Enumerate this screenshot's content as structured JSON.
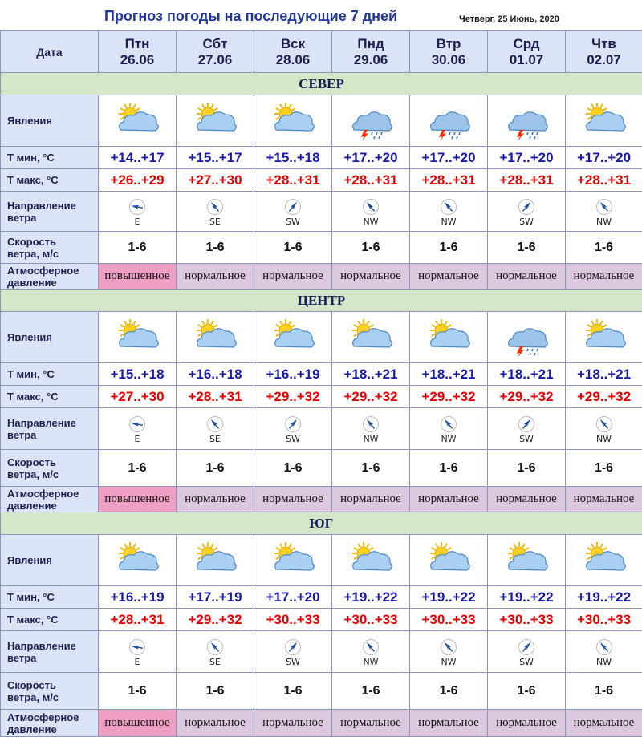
{
  "header": {
    "title": "Прогноз погоды на последующие 7 дней",
    "date": "Четверг, 25 Июнь, 2020"
  },
  "labels": {
    "date": "Дата",
    "phenomena": "Явления",
    "tmin": "Т мин, °С",
    "tmax": "Т макс, °С",
    "wind_dir_1": "Направление",
    "wind_dir_2": "ветра",
    "wind_speed_1": "Скорость",
    "wind_speed_2": "ветра, м/с",
    "pressure_1": "Атмосферное",
    "pressure_2": "давление"
  },
  "days": [
    {
      "name": "Птн",
      "date": "26.06"
    },
    {
      "name": "Сбт",
      "date": "27.06"
    },
    {
      "name": "Вск",
      "date": "28.06"
    },
    {
      "name": "Пнд",
      "date": "29.06"
    },
    {
      "name": "Втр",
      "date": "30.06"
    },
    {
      "name": "Срд",
      "date": "01.07"
    },
    {
      "name": "Чтв",
      "date": "02.07"
    }
  ],
  "colors": {
    "title": "#23379b",
    "tmin": "#1a1aa8",
    "tmax": "#e60000",
    "region_bg": "#d6e6c8",
    "label_bg": "#dbe4f6",
    "pressure_normal_bg": "#dcc8de",
    "pressure_high_bg": "#ef9fc4"
  },
  "regions": [
    {
      "name": "СЕВЕР",
      "icons": [
        "partly-cloudy-icon",
        "partly-cloudy-icon",
        "partly-cloudy-icon",
        "thunderstorm-icon",
        "thunderstorm-icon",
        "thunderstorm-icon",
        "partly-cloudy-icon"
      ],
      "tmin": [
        "+14..+17",
        "+15..+17",
        "+15..+18",
        "+17..+20",
        "+17..+20",
        "+17..+20",
        "+17..+20"
      ],
      "tmax": [
        "+26..+29",
        "+27..+30",
        "+28..+31",
        "+28..+31",
        "+28..+31",
        "+28..+31",
        "+28..+31"
      ],
      "wind_dir": [
        "E",
        "SE",
        "SW",
        "NW",
        "NW",
        "SW",
        "NW"
      ],
      "wind_speed": [
        "1-6",
        "1-6",
        "1-6",
        "1-6",
        "1-6",
        "1-6",
        "1-6"
      ],
      "pressure": [
        "повышенное",
        "нормальное",
        "нормальное",
        "нормальное",
        "нормальное",
        "нормальное",
        "нормальное"
      ]
    },
    {
      "name": "ЦЕНТР",
      "icons": [
        "partly-cloudy-icon",
        "partly-cloudy-icon",
        "partly-cloudy-icon",
        "partly-cloudy-icon",
        "partly-cloudy-icon",
        "thunderstorm-icon",
        "partly-cloudy-icon"
      ],
      "tmin": [
        "+15..+18",
        "+16..+18",
        "+16..+19",
        "+18..+21",
        "+18..+21",
        "+18..+21",
        "+18..+21"
      ],
      "tmax": [
        "+27..+30",
        "+28..+31",
        "+29..+32",
        "+29..+32",
        "+29..+32",
        "+29..+32",
        "+29..+32"
      ],
      "wind_dir": [
        "E",
        "SE",
        "SW",
        "NW",
        "NW",
        "SW",
        "NW"
      ],
      "wind_speed": [
        "1-6",
        "1-6",
        "1-6",
        "1-6",
        "1-6",
        "1-6",
        "1-6"
      ],
      "pressure": [
        "повышенное",
        "нормальное",
        "нормальное",
        "нормальное",
        "нормальное",
        "нормальное",
        "нормальное"
      ]
    },
    {
      "name": "ЮГ",
      "icons": [
        "partly-cloudy-icon",
        "partly-cloudy-icon",
        "partly-cloudy-icon",
        "partly-cloudy-icon",
        "partly-cloudy-icon",
        "partly-cloudy-icon",
        "partly-cloudy-icon"
      ],
      "tmin": [
        "+16..+19",
        "+17..+19",
        "+17..+20",
        "+19..+22",
        "+19..+22",
        "+19..+22",
        "+19..+22"
      ],
      "tmax": [
        "+28..+31",
        "+29..+32",
        "+30..+33",
        "+30..+33",
        "+30..+33",
        "+30..+33",
        "+30..+33"
      ],
      "wind_dir": [
        "E",
        "SE",
        "SW",
        "NW",
        "NW",
        "SW",
        "NW"
      ],
      "wind_speed": [
        "1-6",
        "1-6",
        "1-6",
        "1-6",
        "1-6",
        "1-6",
        "1-6"
      ],
      "pressure": [
        "повышенное",
        "нормальное",
        "нормальное",
        "нормальное",
        "нормальное",
        "нормальное",
        "нормальное"
      ]
    }
  ]
}
